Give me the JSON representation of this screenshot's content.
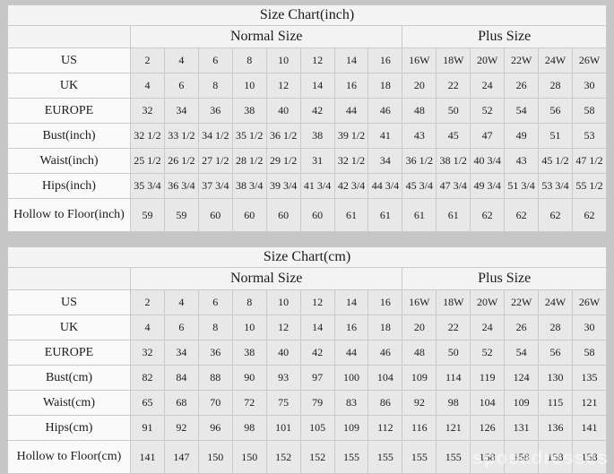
{
  "watermark": "sposadresses",
  "colors": {
    "page_background": "#c6c6c6",
    "table_background": "#f4f4f4",
    "label_cell_background": "#fafafa",
    "value_cell_background": "#e8e8e8",
    "border": "#c9c9c9",
    "text": "#1b1b1b"
  },
  "chart_data": [
    {
      "type": "table",
      "title": "Size Chart(inch)",
      "column_groups": [
        {
          "label": "Normal Size",
          "span": 8
        },
        {
          "label": "Plus Size",
          "span": 6
        }
      ],
      "rows": [
        {
          "label": "US",
          "values": [
            "2",
            "4",
            "6",
            "8",
            "10",
            "12",
            "14",
            "16",
            "16W",
            "18W",
            "20W",
            "22W",
            "24W",
            "26W"
          ]
        },
        {
          "label": "UK",
          "values": [
            "4",
            "6",
            "8",
            "10",
            "12",
            "14",
            "16",
            "18",
            "20",
            "22",
            "24",
            "26",
            "28",
            "30"
          ]
        },
        {
          "label": "EUROPE",
          "values": [
            "32",
            "34",
            "36",
            "38",
            "40",
            "42",
            "44",
            "46",
            "48",
            "50",
            "52",
            "54",
            "56",
            "58"
          ]
        },
        {
          "label": "Bust(inch)",
          "values": [
            "32 1/2",
            "33 1/2",
            "34 1/2",
            "35 1/2",
            "36 1/2",
            "38",
            "39 1/2",
            "41",
            "43",
            "45",
            "47",
            "49",
            "51",
            "53"
          ]
        },
        {
          "label": "Waist(inch)",
          "values": [
            "25 1/2",
            "26 1/2",
            "27 1/2",
            "28 1/2",
            "29 1/2",
            "31",
            "32 1/2",
            "34",
            "36 1/2",
            "38 1/2",
            "40 3/4",
            "43",
            "45 1/2",
            "47 1/2"
          ]
        },
        {
          "label": "Hips(inch)",
          "values": [
            "35 3/4",
            "36 3/4",
            "37 3/4",
            "38 3/4",
            "39 3/4",
            "41 3/4",
            "42 3/4",
            "44 3/4",
            "45 3/4",
            "47 3/4",
            "49 3/4",
            "51 3/4",
            "53 3/4",
            "55 1/2"
          ]
        },
        {
          "label": "Hollow to Floor(inch)",
          "values": [
            "59",
            "59",
            "60",
            "60",
            "60",
            "60",
            "61",
            "61",
            "61",
            "61",
            "62",
            "62",
            "62",
            "62"
          ]
        }
      ]
    },
    {
      "type": "table",
      "title": "Size Chart(cm)",
      "column_groups": [
        {
          "label": "Normal Size",
          "span": 8
        },
        {
          "label": "Plus Size",
          "span": 6
        }
      ],
      "rows": [
        {
          "label": "US",
          "values": [
            "2",
            "4",
            "6",
            "8",
            "10",
            "12",
            "14",
            "16",
            "16W",
            "18W",
            "20W",
            "22W",
            "24W",
            "26W"
          ]
        },
        {
          "label": "UK",
          "values": [
            "4",
            "6",
            "8",
            "10",
            "12",
            "14",
            "16",
            "18",
            "20",
            "22",
            "24",
            "26",
            "28",
            "30"
          ]
        },
        {
          "label": "EUROPE",
          "values": [
            "32",
            "34",
            "36",
            "38",
            "40",
            "42",
            "44",
            "46",
            "48",
            "50",
            "52",
            "54",
            "56",
            "58"
          ]
        },
        {
          "label": "Bust(cm)",
          "values": [
            "82",
            "84",
            "88",
            "90",
            "93",
            "97",
            "100",
            "104",
            "109",
            "114",
            "119",
            "124",
            "130",
            "135"
          ]
        },
        {
          "label": "Waist(cm)",
          "values": [
            "65",
            "68",
            "70",
            "72",
            "75",
            "79",
            "83",
            "86",
            "92",
            "98",
            "104",
            "109",
            "115",
            "121"
          ]
        },
        {
          "label": "Hips(cm)",
          "values": [
            "91",
            "92",
            "96",
            "98",
            "101",
            "105",
            "109",
            "112",
            "116",
            "121",
            "126",
            "131",
            "136",
            "141"
          ]
        },
        {
          "label": "Hollow to Floor(cm)",
          "values": [
            "141",
            "147",
            "150",
            "150",
            "152",
            "152",
            "155",
            "155",
            "155",
            "155",
            "158",
            "158",
            "158",
            "158"
          ]
        }
      ]
    }
  ]
}
